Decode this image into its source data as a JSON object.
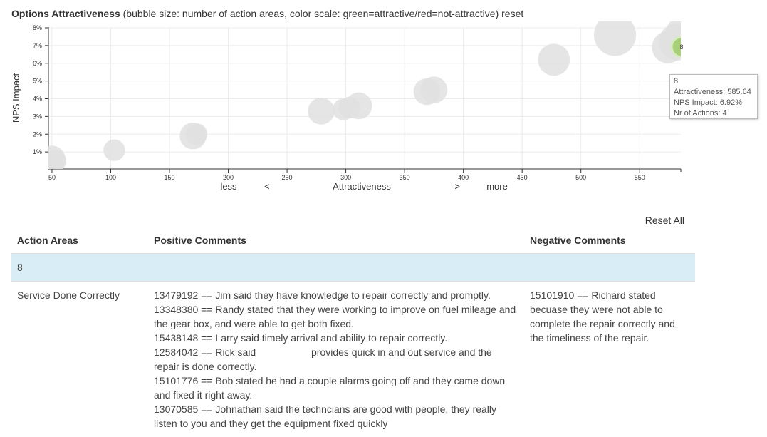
{
  "header": {
    "title_bold": "Options Attractiveness",
    "title_rest": " (bubble size: number of action areas, color scale: green=attractive/red=not-attractive) ",
    "reset_label": "reset"
  },
  "chart_data": {
    "type": "scatter",
    "xlabel_parts": [
      "less",
      "<-",
      "Attractiveness",
      "->",
      "more"
    ],
    "ylabel": "NPS Impact",
    "xlim": [
      47,
      585
    ],
    "ylim": [
      0,
      8
    ],
    "x_ticks": [
      "50",
      "100",
      "150",
      "200",
      "250",
      "300",
      "350",
      "400",
      "450",
      "500",
      "550"
    ],
    "y_ticks": [
      "1%",
      "2%",
      "3%",
      "4%",
      "5%",
      "6%",
      "7%",
      "8%"
    ],
    "grid": true,
    "points": [
      {
        "x": 50,
        "y": 0.6,
        "size": 3
      },
      {
        "x": 53,
        "y": 0.5,
        "size": 2
      },
      {
        "x": 103,
        "y": 1.1,
        "size": 2
      },
      {
        "x": 170,
        "y": 1.9,
        "size": 3
      },
      {
        "x": 173,
        "y": 2.0,
        "size": 2
      },
      {
        "x": 279,
        "y": 3.3,
        "size": 3
      },
      {
        "x": 298,
        "y": 3.4,
        "size": 2
      },
      {
        "x": 303,
        "y": 3.5,
        "size": 2
      },
      {
        "x": 311,
        "y": 3.6,
        "size": 3
      },
      {
        "x": 369,
        "y": 4.4,
        "size": 3
      },
      {
        "x": 375,
        "y": 4.5,
        "size": 3
      },
      {
        "x": 477,
        "y": 6.2,
        "size": 4
      },
      {
        "x": 529,
        "y": 7.6,
        "size": 6
      },
      {
        "x": 574,
        "y": 6.9,
        "size": 4
      },
      {
        "x": 582,
        "y": 7.2,
        "size": 5
      },
      {
        "x": 584,
        "y": 7.8,
        "size": 3
      },
      {
        "x": 585.64,
        "y": 6.92,
        "size": 4,
        "label": "8",
        "highlight": true
      }
    ],
    "highlight_color": "#a3cf73",
    "bubble_color": "#e0e0e0"
  },
  "tooltip": {
    "name": "8",
    "attractiveness": "Attractiveness: 585.64",
    "nps": "NPS Impact: 6.92%",
    "actions": "Nr of Actions: 4"
  },
  "reset_all_label": "Reset All",
  "table": {
    "headers": [
      "Action Areas",
      "Positive Comments",
      "Negative Comments"
    ],
    "group_label": "8",
    "row": {
      "area": "Service Done Correctly",
      "positive": [
        "13479192 == Jim said they have knowledge to repair correctly and promptly.",
        "13348380 == Randy stated that they were working to improve on fuel mileage and the gear box, and were able to get both fixed.",
        "15438148 == Larry said timely arrival and ability to repair correctly.",
        "15101776 == Bob stated he had a couple alarms going off and they came down and fixed it right away.",
        "13070585 == Johnathan said the techncians are good with people, they really listen to you and they get the equipment fixed quickly"
      ],
      "positive_redacted": {
        "before": "12584042 == Rick said ",
        "after": " provides quick in and out service and the repair is done correctly."
      },
      "negative": [
        "15101910 == Richard stated becuase they were not able to complete the repair correctly and the timeliness of the repair."
      ]
    }
  }
}
